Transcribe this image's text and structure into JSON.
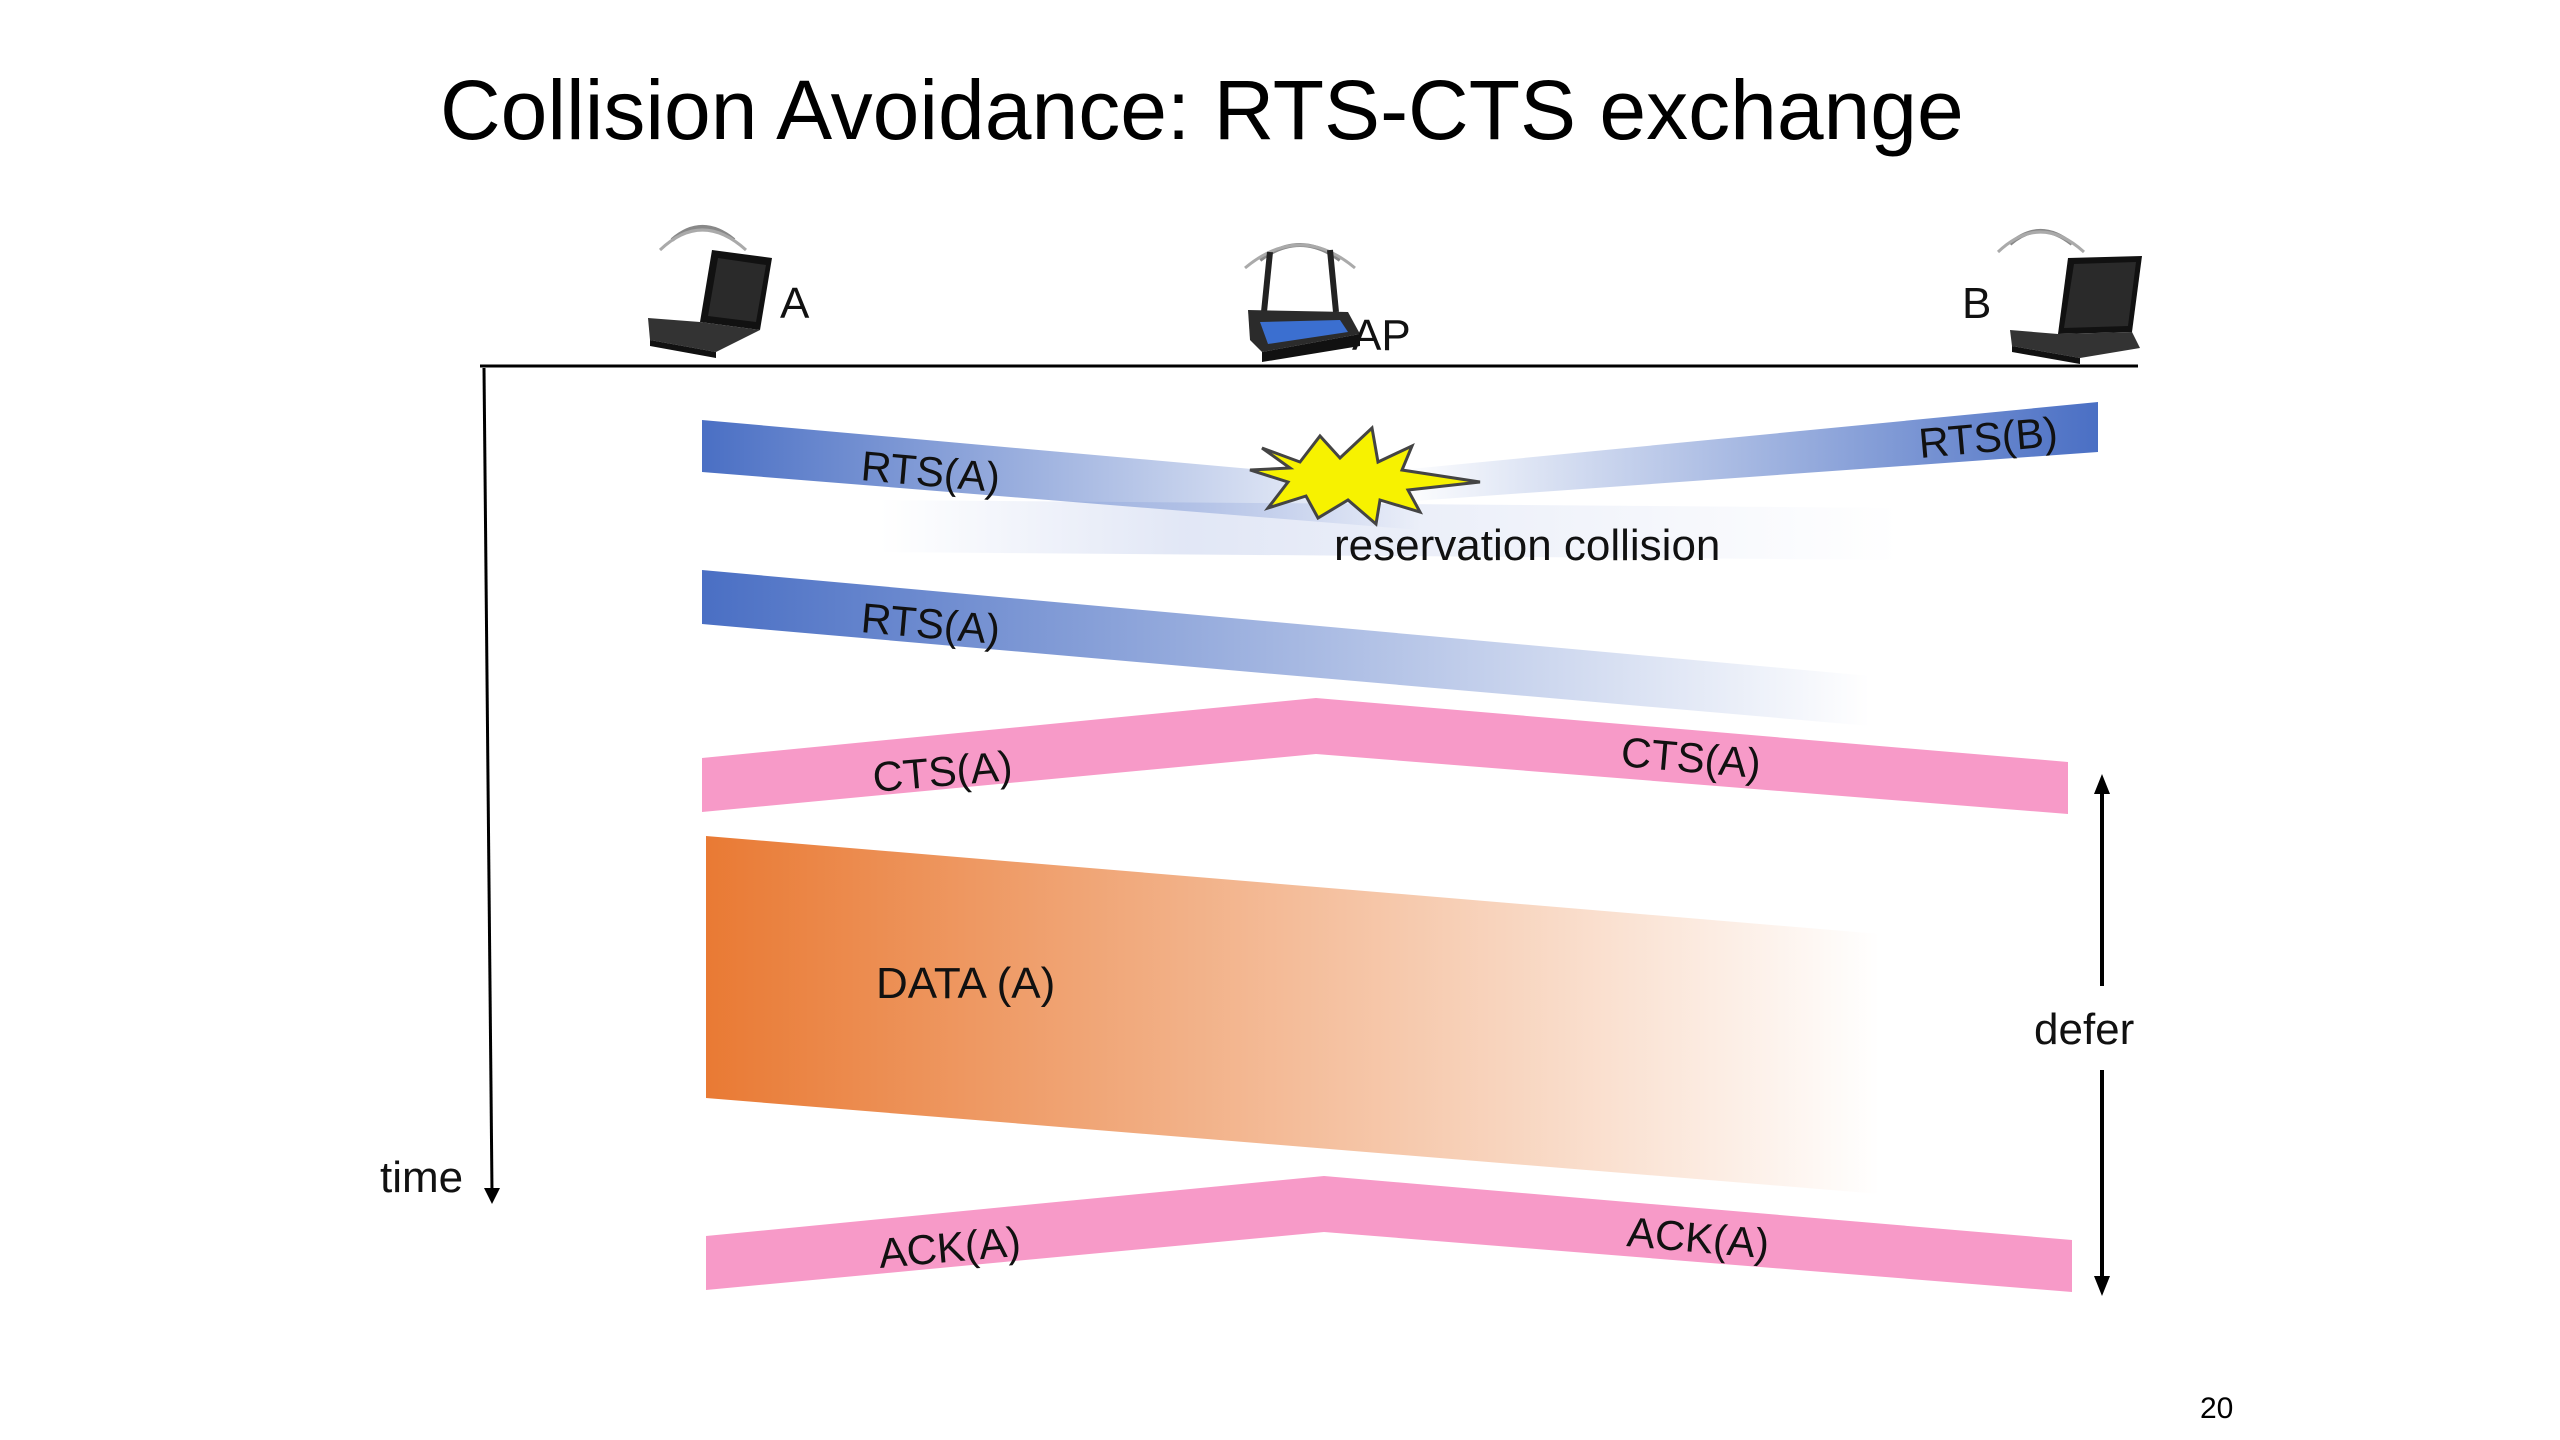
{
  "slide": {
    "title": "Collision Avoidance: RTS-CTS exchange",
    "page_number": "20"
  },
  "nodes": {
    "a_label": "A",
    "ap_label": "AP",
    "b_label": "B"
  },
  "axis": {
    "time_label": "time",
    "defer_label": "defer"
  },
  "frames": {
    "rts_a_1": "RTS(A)",
    "rts_b": "RTS(B)",
    "collision": "reservation collision",
    "rts_a_2": "RTS(A)",
    "cts_a_left": "CTS(A)",
    "cts_a_right": "CTS(A)",
    "data_a": "DATA (A)",
    "ack_a_left": "ACK(A)",
    "ack_a_right": "ACK(A)"
  },
  "colors": {
    "rts_blue": "#4a6fc4",
    "cts_pink": "#f79ac8",
    "data_orange": "#e97a34",
    "burst_yellow": "#f7f200"
  }
}
